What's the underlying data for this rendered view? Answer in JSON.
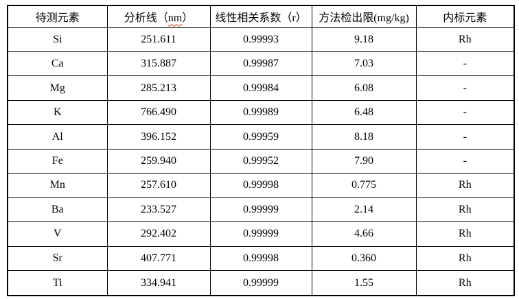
{
  "table": {
    "headers": {
      "element": "待测元素",
      "analysis_line_prefix": "分析线（",
      "analysis_line_unit": "nm",
      "analysis_line_suffix": "）",
      "correlation": "线性相关系数（r）",
      "detection_limit": "方法检出限(mg/kg)",
      "internal_standard": "内标元素"
    },
    "rows": [
      [
        "Si",
        "251.611",
        "0.99993",
        "9.18",
        "Rh"
      ],
      [
        "Ca",
        "315.887",
        "0.99987",
        "7.03",
        "-"
      ],
      [
        "Mg",
        "285.213",
        "0.99984",
        "6.08",
        "-"
      ],
      [
        "K",
        "766.490",
        "0.99989",
        "6.48",
        "-"
      ],
      [
        "Al",
        "396.152",
        "0.99959",
        "8.18",
        "-"
      ],
      [
        "Fe",
        "259.940",
        "0.99952",
        "7.90",
        "-"
      ],
      [
        "Mn",
        "257.610",
        "0.99998",
        "0.775",
        "Rh"
      ],
      [
        "Ba",
        "233.527",
        "0.99999",
        "2.14",
        "Rh"
      ],
      [
        "V",
        "292.402",
        "0.99999",
        "4.66",
        "Rh"
      ],
      [
        "Sr",
        "407.771",
        "0.99998",
        "0.360",
        "Rh"
      ],
      [
        "Ti",
        "334.941",
        "0.99999",
        "1.55",
        "Rh"
      ]
    ]
  },
  "colors": {
    "border": "#000000",
    "text": "#000000",
    "background": "#ffffff",
    "spellcheck_underline": "#d93025"
  }
}
